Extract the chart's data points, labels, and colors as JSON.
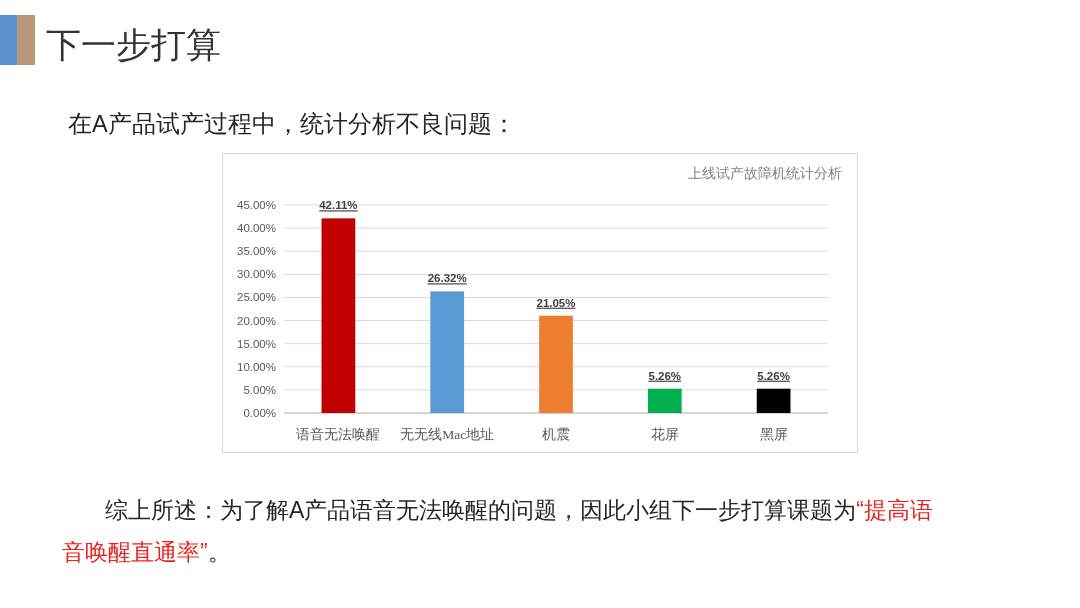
{
  "chart_data": {
    "type": "bar",
    "title": "上线试产故障机统计分析",
    "subtitle": "在A产品试产过程中，统计分析不良问题：",
    "annotations": [
      "下一步打算",
      "综上所述：为了解A产品语音无法唤醒的问题，因此小组下一步打算课题为",
      "“提高语",
      "音唤醒直通率”",
      "。"
    ],
    "categories": [
      "语音无法唤醒",
      "无无线Mac地址",
      "机震",
      "花屏",
      "黑屏"
    ],
    "values": [
      42.11,
      26.32,
      21.05,
      5.26,
      5.26
    ],
    "colors": [
      "#c00000",
      "#5b9bd5",
      "#ed7d31",
      "#00b050",
      "#000000"
    ],
    "value_labels": [
      "42.11%",
      "26.32%",
      "21.05%",
      "5.26%",
      "5.26%"
    ],
    "ylim": [
      0,
      45
    ],
    "yticks": [
      {
        "value": 0,
        "label": "0.00%"
      },
      {
        "value": 5,
        "label": "5.00%"
      },
      {
        "value": 10,
        "label": "10.00%"
      },
      {
        "value": 15,
        "label": "15.00%"
      },
      {
        "value": 20,
        "label": "20.00%"
      },
      {
        "value": 25,
        "label": "25.00%"
      },
      {
        "value": 30,
        "label": "30.00%"
      },
      {
        "value": 35,
        "label": "35.00%"
      },
      {
        "value": 40,
        "label": "40.00%"
      },
      {
        "value": 45,
        "label": "45.00%"
      }
    ],
    "grid": "y"
  }
}
